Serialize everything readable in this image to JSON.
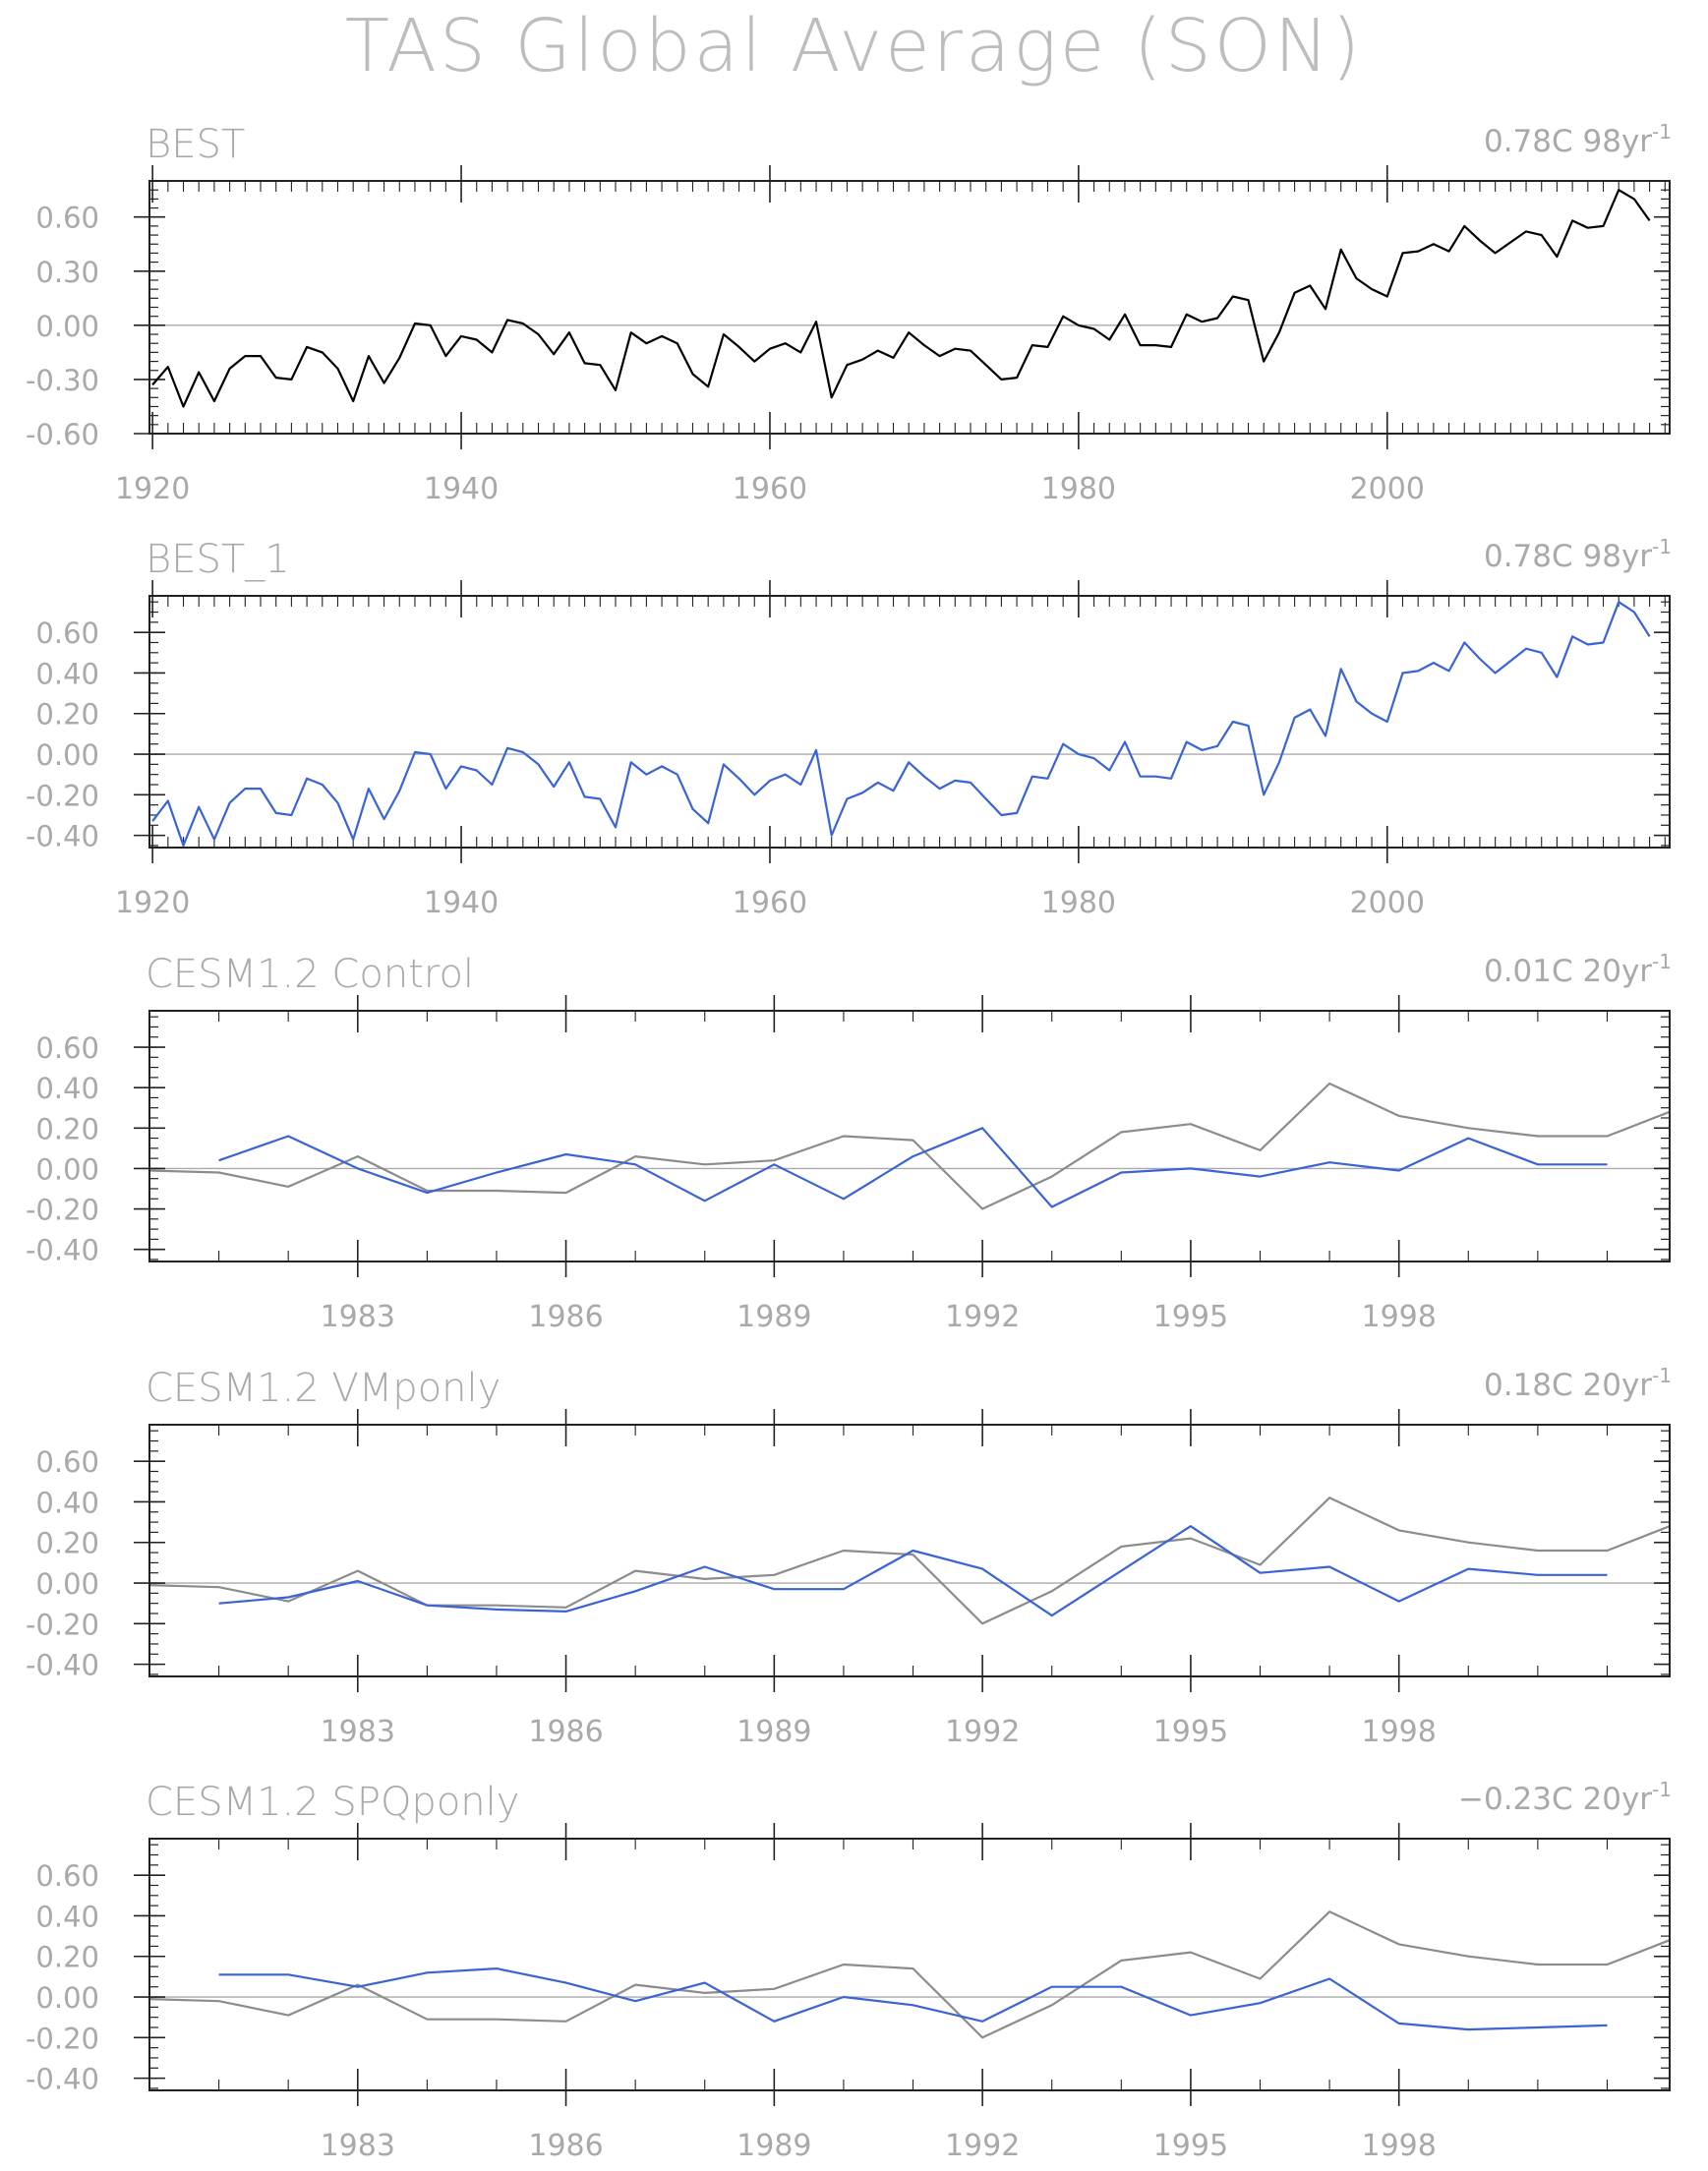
{
  "figure_title": "TAS Global Average (SON)",
  "colors": {
    "frame": "#222222",
    "text": "#a9a9a9",
    "zero_line": "#aaaaaa",
    "black": "#000000",
    "blue": "#3a63d6",
    "grey": "#8c8c8c"
  },
  "chart_data": [
    {
      "type": "line",
      "title": "BEST",
      "trend_value": "0.78C 98yr",
      "trend_exp": "-1",
      "xlim": [
        1919.8,
        2018.3
      ],
      "ylim": [
        -0.6,
        0.8
      ],
      "yticks": [
        "0.60",
        "0.30",
        "0.00",
        "-0.30",
        "-0.60"
      ],
      "yticks_values": [
        0.6,
        0.3,
        0.0,
        -0.3,
        -0.6
      ],
      "xtick_labels": [
        "1920",
        "1940",
        "1960",
        "1980",
        "2000"
      ],
      "xtick_values": [
        1920,
        1940,
        1960,
        1980,
        2000
      ],
      "x_start": 1920,
      "series": [
        {
          "color": "#000000",
          "values": [
            -0.33,
            -0.23,
            -0.45,
            -0.26,
            -0.42,
            -0.24,
            -0.17,
            -0.17,
            -0.29,
            -0.3,
            -0.12,
            -0.15,
            -0.24,
            -0.42,
            -0.17,
            -0.32,
            -0.18,
            0.01,
            0.0,
            -0.17,
            -0.06,
            -0.08,
            -0.15,
            0.03,
            0.01,
            -0.05,
            -0.16,
            -0.04,
            -0.21,
            -0.22,
            -0.36,
            -0.04,
            -0.1,
            -0.06,
            -0.1,
            -0.27,
            -0.34,
            -0.05,
            -0.12,
            -0.2,
            -0.13,
            -0.1,
            -0.15,
            0.02,
            -0.4,
            -0.22,
            -0.19,
            -0.14,
            -0.18,
            -0.04,
            -0.11,
            -0.17,
            -0.13,
            -0.14,
            -0.22,
            -0.3,
            -0.29,
            -0.11,
            -0.12,
            0.05,
            0.0,
            -0.02,
            -0.08,
            0.06,
            -0.11,
            -0.11,
            -0.12,
            0.06,
            0.02,
            0.04,
            0.16,
            0.14,
            -0.2,
            -0.04,
            0.18,
            0.22,
            0.09,
            0.42,
            0.26,
            0.2,
            0.16,
            0.4,
            0.41,
            0.45,
            0.41,
            0.55,
            0.47,
            0.4,
            0.46,
            0.52,
            0.5,
            0.38,
            0.58,
            0.54,
            0.55,
            0.75,
            0.7,
            0.58
          ]
        }
      ]
    },
    {
      "type": "line",
      "title": "BEST_1",
      "trend_value": "0.78C 98yr",
      "trend_exp": "-1",
      "xlim": [
        1919.8,
        2018.3
      ],
      "ylim": [
        -0.46,
        0.78
      ],
      "yticks": [
        "0.60",
        "0.40",
        "0.20",
        "0.00",
        "-0.20",
        "-0.40"
      ],
      "yticks_values": [
        0.6,
        0.4,
        0.2,
        0.0,
        -0.2,
        -0.4
      ],
      "xtick_labels": [
        "1920",
        "1940",
        "1960",
        "1980",
        "2000"
      ],
      "xtick_values": [
        1920,
        1940,
        1960,
        1980,
        2000
      ],
      "x_start": 1920,
      "series": [
        {
          "color": "#3a63d6",
          "values": [
            -0.33,
            -0.23,
            -0.45,
            -0.26,
            -0.42,
            -0.24,
            -0.17,
            -0.17,
            -0.29,
            -0.3,
            -0.12,
            -0.15,
            -0.24,
            -0.42,
            -0.17,
            -0.32,
            -0.18,
            0.01,
            0.0,
            -0.17,
            -0.06,
            -0.08,
            -0.15,
            0.03,
            0.01,
            -0.05,
            -0.16,
            -0.04,
            -0.21,
            -0.22,
            -0.36,
            -0.04,
            -0.1,
            -0.06,
            -0.1,
            -0.27,
            -0.34,
            -0.05,
            -0.12,
            -0.2,
            -0.13,
            -0.1,
            -0.15,
            0.02,
            -0.4,
            -0.22,
            -0.19,
            -0.14,
            -0.18,
            -0.04,
            -0.11,
            -0.17,
            -0.13,
            -0.14,
            -0.22,
            -0.3,
            -0.29,
            -0.11,
            -0.12,
            0.05,
            0.0,
            -0.02,
            -0.08,
            0.06,
            -0.11,
            -0.11,
            -0.12,
            0.06,
            0.02,
            0.04,
            0.16,
            0.14,
            -0.2,
            -0.04,
            0.18,
            0.22,
            0.09,
            0.42,
            0.26,
            0.2,
            0.16,
            0.4,
            0.41,
            0.45,
            0.41,
            0.55,
            0.47,
            0.4,
            0.46,
            0.52,
            0.5,
            0.38,
            0.58,
            0.54,
            0.55,
            0.75,
            0.7,
            0.58
          ]
        }
      ]
    },
    {
      "type": "line",
      "title": "CESM1.2 Control",
      "trend_value": "0.01C 20yr",
      "trend_exp": "-1",
      "xlim": [
        1980,
        2001.9
      ],
      "ylim": [
        -0.46,
        0.78
      ],
      "yticks": [
        "0.60",
        "0.40",
        "0.20",
        "0.00",
        "-0.20",
        "-0.40"
      ],
      "yticks_values": [
        0.6,
        0.4,
        0.2,
        0.0,
        -0.2,
        -0.4
      ],
      "xtick_labels": [
        "1983",
        "1986",
        "1989",
        "1992",
        "1995",
        "1998"
      ],
      "xtick_values": [
        1983,
        1986,
        1989,
        1992,
        1995,
        1998
      ],
      "series": [
        {
          "color": "#8c8c8c",
          "x": [
            1980,
            1981,
            1982,
            1983,
            1984,
            1985,
            1986,
            1987,
            1988,
            1989,
            1990,
            1991,
            1992,
            1993,
            1994,
            1995,
            1996,
            1997,
            1998,
            1999,
            2000,
            2001,
            2001.9
          ],
          "values": [
            -0.01,
            -0.02,
            -0.09,
            0.06,
            -0.11,
            -0.11,
            -0.12,
            0.06,
            0.02,
            0.04,
            0.16,
            0.14,
            -0.2,
            -0.04,
            0.18,
            0.22,
            0.09,
            0.42,
            0.26,
            0.2,
            0.16,
            0.16,
            0.28
          ]
        },
        {
          "color": "#3a63d6",
          "x": [
            1981,
            1982,
            1983,
            1984,
            1985,
            1986,
            1987,
            1988,
            1989,
            1990,
            1991,
            1992,
            1993,
            1994,
            1995,
            1996,
            1997,
            1998,
            1999,
            2000,
            2001
          ],
          "values": [
            0.04,
            0.16,
            0.0,
            -0.12,
            -0.02,
            0.07,
            0.02,
            -0.16,
            0.02,
            -0.15,
            0.06,
            0.2,
            -0.19,
            -0.02,
            0.0,
            -0.04,
            0.03,
            -0.01,
            0.15,
            0.02,
            0.02
          ]
        }
      ]
    },
    {
      "type": "line",
      "title": "CESM1.2 VMponly",
      "trend_value": "0.18C 20yr",
      "trend_exp": "-1",
      "xlim": [
        1980,
        2001.9
      ],
      "ylim": [
        -0.46,
        0.78
      ],
      "yticks": [
        "0.60",
        "0.40",
        "0.20",
        "0.00",
        "-0.20",
        "-0.40"
      ],
      "yticks_values": [
        0.6,
        0.4,
        0.2,
        0.0,
        -0.2,
        -0.4
      ],
      "xtick_labels": [
        "1983",
        "1986",
        "1989",
        "1992",
        "1995",
        "1998"
      ],
      "xtick_values": [
        1983,
        1986,
        1989,
        1992,
        1995,
        1998
      ],
      "series": [
        {
          "color": "#8c8c8c",
          "x": [
            1980,
            1981,
            1982,
            1983,
            1984,
            1985,
            1986,
            1987,
            1988,
            1989,
            1990,
            1991,
            1992,
            1993,
            1994,
            1995,
            1996,
            1997,
            1998,
            1999,
            2000,
            2001,
            2001.9
          ],
          "values": [
            -0.01,
            -0.02,
            -0.09,
            0.06,
            -0.11,
            -0.11,
            -0.12,
            0.06,
            0.02,
            0.04,
            0.16,
            0.14,
            -0.2,
            -0.04,
            0.18,
            0.22,
            0.09,
            0.42,
            0.26,
            0.2,
            0.16,
            0.16,
            0.28
          ]
        },
        {
          "color": "#3a63d6",
          "x": [
            1981,
            1982,
            1983,
            1984,
            1985,
            1986,
            1987,
            1988,
            1989,
            1990,
            1991,
            1992,
            1993,
            1994,
            1995,
            1996,
            1997,
            1998,
            1999,
            2000,
            2001
          ],
          "values": [
            -0.1,
            -0.07,
            0.01,
            -0.11,
            -0.13,
            -0.14,
            -0.04,
            0.08,
            -0.03,
            -0.03,
            0.16,
            0.07,
            -0.16,
            0.06,
            0.28,
            0.05,
            0.08,
            -0.09,
            0.07,
            0.04,
            0.04
          ]
        }
      ]
    },
    {
      "type": "line",
      "title": "CESM1.2 SPQponly",
      "trend_value": "−0.23C 20yr",
      "trend_exp": "-1",
      "xlim": [
        1980,
        2001.9
      ],
      "ylim": [
        -0.46,
        0.78
      ],
      "yticks": [
        "0.60",
        "0.40",
        "0.20",
        "0.00",
        "-0.20",
        "-0.40"
      ],
      "yticks_values": [
        0.6,
        0.4,
        0.2,
        0.0,
        -0.2,
        -0.4
      ],
      "xtick_labels": [
        "1983",
        "1986",
        "1989",
        "1992",
        "1995",
        "1998"
      ],
      "xtick_values": [
        1983,
        1986,
        1989,
        1992,
        1995,
        1998
      ],
      "series": [
        {
          "color": "#8c8c8c",
          "x": [
            1980,
            1981,
            1982,
            1983,
            1984,
            1985,
            1986,
            1987,
            1988,
            1989,
            1990,
            1991,
            1992,
            1993,
            1994,
            1995,
            1996,
            1997,
            1998,
            1999,
            2000,
            2001,
            2001.9
          ],
          "values": [
            -0.01,
            -0.02,
            -0.09,
            0.06,
            -0.11,
            -0.11,
            -0.12,
            0.06,
            0.02,
            0.04,
            0.16,
            0.14,
            -0.2,
            -0.04,
            0.18,
            0.22,
            0.09,
            0.42,
            0.26,
            0.2,
            0.16,
            0.16,
            0.28
          ]
        },
        {
          "color": "#3a63d6",
          "x": [
            1981,
            1982,
            1983,
            1984,
            1985,
            1986,
            1987,
            1988,
            1989,
            1990,
            1991,
            1992,
            1993,
            1994,
            1995,
            1996,
            1997,
            1998,
            1999,
            2000,
            2001
          ],
          "values": [
            0.11,
            0.11,
            0.05,
            0.12,
            0.14,
            0.07,
            -0.02,
            0.07,
            -0.12,
            0.0,
            -0.04,
            -0.12,
            0.05,
            0.05,
            -0.09,
            -0.03,
            0.09,
            -0.13,
            -0.16,
            -0.15,
            -0.14
          ]
        }
      ]
    }
  ]
}
